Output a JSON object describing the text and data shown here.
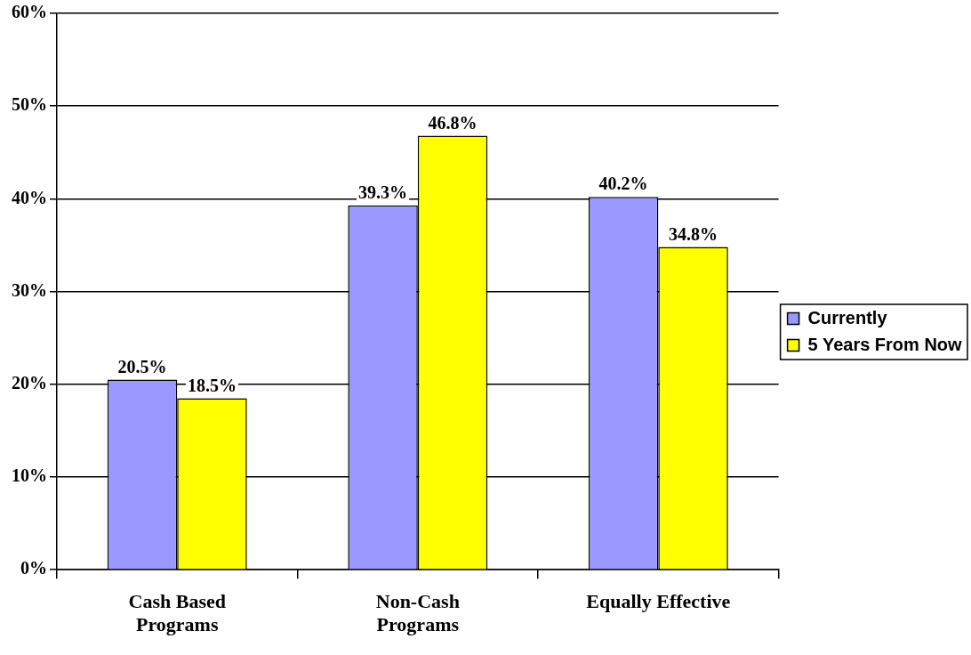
{
  "chart_data": {
    "type": "bar",
    "categories": [
      "Cash Based\nPrograms",
      "Non-Cash\nPrograms",
      "Equally Effective"
    ],
    "series": [
      {
        "name": "Currently",
        "color": "#9999ff",
        "values": [
          20.5,
          39.3,
          40.2
        ]
      },
      {
        "name": "5 Years From Now",
        "color": "#ffff00",
        "values": [
          18.5,
          46.8,
          34.8
        ]
      }
    ],
    "ylim": [
      0,
      60
    ],
    "yticks": [
      {
        "value": 0,
        "label": "0%"
      },
      {
        "value": 10,
        "label": "10%"
      },
      {
        "value": 20,
        "label": "20%"
      },
      {
        "value": 30,
        "label": "30%"
      },
      {
        "value": 40,
        "label": "40%"
      },
      {
        "value": 50,
        "label": "50%"
      },
      {
        "value": 60,
        "label": "60%"
      }
    ],
    "value_labels": [
      [
        "20.5%",
        "39.3%",
        "40.2%"
      ],
      [
        "18.5%",
        "46.8%",
        "34.8%"
      ]
    ],
    "grid": "y",
    "legend": "right"
  }
}
